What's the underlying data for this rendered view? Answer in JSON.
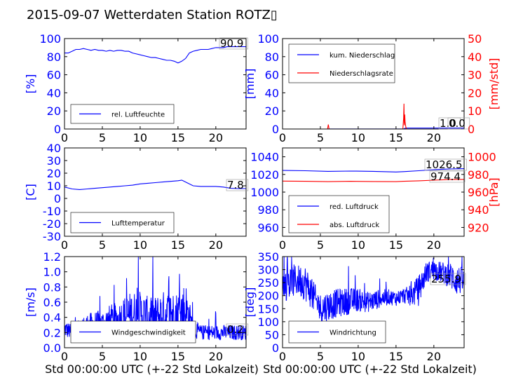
{
  "title": "2015-09-07 Wetterdaten Station ROTZ",
  "title_glyph": "▯",
  "colors": {
    "blue": "#0000ff",
    "red": "#ff0000",
    "black": "#000000"
  },
  "chart_data": [
    {
      "type": "line",
      "ylabel": "[%]",
      "xlim": [
        0,
        24
      ],
      "ylim": [
        0,
        100
      ],
      "xticks": [
        0,
        5,
        10,
        15,
        20
      ],
      "yticks": [
        0,
        20,
        40,
        60,
        80,
        100
      ],
      "legend": [
        "rel. Luftfeuchte"
      ],
      "legend_placement": "bottom-left",
      "last_value": "90.9",
      "series": [
        {
          "name": "rel. Luftfeuchte",
          "color": "#0000ff",
          "x": [
            0,
            0.5,
            1,
            1.5,
            2,
            2.5,
            3,
            3.5,
            4,
            4.5,
            5,
            5.5,
            6,
            6.5,
            7,
            7.5,
            8,
            8.5,
            9,
            9.5,
            10,
            10.5,
            11,
            11.5,
            12,
            12.5,
            13,
            13.5,
            14,
            14.5,
            15,
            15.5,
            16,
            16.5,
            17,
            17.5,
            18,
            18.5,
            19,
            19.5,
            20,
            20.5,
            21,
            21.5,
            22,
            22.5,
            23,
            23.5,
            24
          ],
          "y": [
            84,
            84,
            86,
            88,
            88,
            89,
            88,
            87,
            88,
            87,
            87,
            86,
            87,
            86,
            87,
            87,
            86,
            86,
            84,
            83,
            82,
            81,
            80,
            79,
            79,
            78,
            77,
            76,
            76,
            75,
            73,
            75,
            78,
            84,
            86,
            87,
            88,
            88,
            88,
            89,
            90,
            90,
            90,
            91,
            91,
            91,
            91,
            91,
            91
          ]
        }
      ]
    },
    {
      "type": "line",
      "ylabel": "[mm]",
      "y2label": "[mm/std]",
      "xlim": [
        0,
        24
      ],
      "ylim": [
        0,
        100
      ],
      "y2lim": [
        0,
        50
      ],
      "xticks": [
        0,
        5,
        10,
        15,
        20
      ],
      "yticks": [
        0,
        20,
        40,
        60,
        80,
        100
      ],
      "y2ticks": [
        0,
        10,
        20,
        30,
        40,
        50
      ],
      "legend": [
        "kum. Niederschlag",
        "Niederschlagsrate"
      ],
      "legend_placement": "top-left",
      "last_values": [
        "1.0",
        "0.0"
      ],
      "series": [
        {
          "name": "kum. Niederschlag",
          "color": "#0000ff",
          "axis": "left",
          "x": [
            0,
            5.9,
            6.0,
            16.0,
            16.1,
            16.3,
            24
          ],
          "y": [
            0,
            0,
            0.1,
            0.1,
            0.5,
            1.0,
            1.0
          ]
        },
        {
          "name": "Niederschlagsrate",
          "color": "#ff0000",
          "axis": "right",
          "x": [
            0,
            5.95,
            6.05,
            6.15,
            15.9,
            16.0,
            16.05,
            16.1,
            16.15,
            16.2,
            16.3,
            16.4,
            24
          ],
          "y": [
            0,
            0,
            2.5,
            0,
            0,
            6,
            14,
            2,
            8,
            4,
            1,
            0,
            0
          ]
        }
      ]
    },
    {
      "type": "line",
      "ylabel": "[C]",
      "xlim": [
        0,
        24
      ],
      "ylim": [
        -30,
        40
      ],
      "xticks": [
        0,
        5,
        10,
        15,
        20
      ],
      "yticks": [
        -30,
        -20,
        -10,
        0,
        10,
        20,
        30,
        40
      ],
      "legend": [
        "Lufttemperatur"
      ],
      "legend_placement": "bottom-left",
      "last_value": "7.8",
      "series": [
        {
          "name": "Lufttemperatur",
          "color": "#0000ff",
          "x": [
            0,
            1,
            2,
            3,
            4,
            5,
            6,
            7,
            8,
            9,
            10,
            11,
            12,
            13,
            14,
            15,
            15.5,
            16,
            17,
            18,
            19,
            20,
            21,
            22,
            23,
            24
          ],
          "y": [
            9,
            7.5,
            7,
            7.5,
            8,
            8.5,
            9,
            9.5,
            10,
            10.5,
            11.5,
            12,
            12.5,
            13,
            13.5,
            14,
            14.5,
            13,
            10,
            9.5,
            9.5,
            9.5,
            9,
            8,
            7.8,
            7.8
          ]
        }
      ]
    },
    {
      "type": "line",
      "xlim": [
        0,
        24
      ],
      "ylim": [
        950,
        1050
      ],
      "y2lim": [
        910,
        1010
      ],
      "xticks": [
        0,
        5,
        10,
        15,
        20
      ],
      "yticks": [
        960,
        980,
        1000,
        1020,
        1040
      ],
      "y2ticks": [
        920,
        940,
        960,
        980,
        1000
      ],
      "y2label": "[hPa]",
      "legend": [
        "red. Luftdruck",
        "abs. Luftdruck"
      ],
      "legend_placement": "bottom-left",
      "last_values": [
        "1026.5",
        "974.4"
      ],
      "series": [
        {
          "name": "red. Luftdruck",
          "color": "#0000ff",
          "axis": "left",
          "x": [
            0,
            3,
            6,
            9,
            12,
            15,
            16,
            18,
            20,
            22,
            24
          ],
          "y": [
            1024.5,
            1024.2,
            1023.5,
            1023.8,
            1023.5,
            1022.8,
            1023.2,
            1024.2,
            1025.3,
            1026.2,
            1026.5
          ]
        },
        {
          "name": "abs. Luftdruck",
          "color": "#ff0000",
          "axis": "right",
          "x": [
            0,
            3,
            6,
            9,
            12,
            15,
            16,
            18,
            20,
            22,
            24
          ],
          "y": [
            972.5,
            972.2,
            971.8,
            972.2,
            972.0,
            971.8,
            972.2,
            972.8,
            973.5,
            974.2,
            974.4
          ]
        }
      ]
    },
    {
      "type": "line",
      "ylabel": "[m/s]",
      "xlabel": "Std 00:00:00 UTC (+-22 Std Lokalzeit)",
      "xlim": [
        0,
        24
      ],
      "ylim": [
        0,
        1.2
      ],
      "xticks": [
        0,
        5,
        10,
        15,
        20
      ],
      "yticks": [
        0.0,
        0.2,
        0.4,
        0.6,
        0.8,
        1.0,
        1.2
      ],
      "legend": [
        "Windgeschwindigkeit"
      ],
      "legend_placement": "bottom-left",
      "last_value": "0.2",
      "series": [
        {
          "name": "Windgeschwindigkeit",
          "color": "#0000ff",
          "noisy": true,
          "x": [
            0,
            1,
            2,
            3,
            4,
            5,
            6,
            7,
            8,
            9,
            10,
            11,
            12,
            13,
            14,
            15,
            16,
            17,
            18,
            19,
            20,
            21,
            22,
            23,
            24
          ],
          "y": [
            0.25,
            0.2,
            0.25,
            0.3,
            0.3,
            0.3,
            0.35,
            0.35,
            0.4,
            0.45,
            0.45,
            0.4,
            0.4,
            0.45,
            0.45,
            0.45,
            0.5,
            0.25,
            0.2,
            0.2,
            0.2,
            0.2,
            0.2,
            0.2,
            0.2
          ],
          "spread": [
            0.12,
            0.1,
            0.12,
            0.15,
            0.18,
            0.2,
            0.22,
            0.25,
            0.3,
            0.3,
            0.3,
            0.28,
            0.28,
            0.3,
            0.3,
            0.3,
            0.4,
            0.12,
            0.1,
            0.1,
            0.1,
            0.1,
            0.1,
            0.1,
            0.1
          ]
        }
      ]
    },
    {
      "type": "line",
      "ylabel": "[deg]",
      "xlabel": "Std 00:00:00 UTC (+-22 Std Lokalzeit)",
      "xlim": [
        0,
        24
      ],
      "ylim": [
        0,
        350
      ],
      "xticks": [
        0,
        5,
        10,
        15,
        20
      ],
      "yticks": [
        0,
        50,
        100,
        150,
        200,
        250,
        300,
        350
      ],
      "legend": [
        "Windrichtung"
      ],
      "legend_placement": "bottom-left",
      "last_value": "255.9",
      "series": [
        {
          "name": "Windrichtung",
          "color": "#0000ff",
          "noisy": true,
          "x": [
            0,
            1,
            2,
            3,
            4,
            5,
            6,
            7,
            8,
            9,
            10,
            11,
            12,
            13,
            14,
            15,
            16,
            17,
            18,
            19,
            20,
            21,
            22,
            23,
            24
          ],
          "y": [
            240,
            250,
            260,
            250,
            200,
            150,
            160,
            170,
            175,
            180,
            185,
            175,
            180,
            190,
            195,
            190,
            200,
            200,
            220,
            290,
            300,
            290,
            280,
            260,
            256
          ],
          "spread": [
            60,
            70,
            60,
            70,
            60,
            60,
            60,
            55,
            55,
            50,
            45,
            40,
            40,
            35,
            30,
            30,
            30,
            40,
            60,
            40,
            40,
            40,
            50,
            60,
            50
          ]
        }
      ]
    }
  ]
}
